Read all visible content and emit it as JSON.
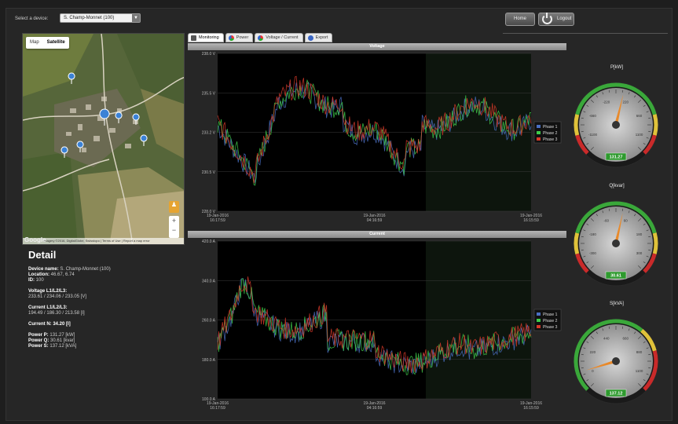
{
  "header": {
    "device_label": "Select a device:",
    "device_value": "S. Champ-Monnet (100)",
    "home_label": "Home",
    "logout_label": "Logout"
  },
  "map": {
    "type_map": "Map",
    "type_satellite": "Satellite",
    "logo": "Google",
    "footer": "Imagery ©2016, DigitalGlobe, Swisstopo | Terms of Use | Report a map error"
  },
  "tabs": [
    {
      "label": "Monitoring",
      "icon": "monitor-icon"
    },
    {
      "label": "Power",
      "icon": "power-chart-icon"
    },
    {
      "label": "Voltage / Current",
      "icon": "voltage-current-icon"
    },
    {
      "label": "Export",
      "icon": "export-icon"
    }
  ],
  "detail": {
    "title": "Detail",
    "device_name_label": "Device name:",
    "device_name": "S. Champ-Monnet (100)",
    "location_label": "Location:",
    "location": "46.67, 6.74",
    "id_label": "ID:",
    "id": "100",
    "voltage_label": "Voltage L1/L2/L3:",
    "voltage": "233.61 / 234.06 / 233.05 [V]",
    "current_label": "Current L1/L2/L3:",
    "current": "194.49 / 186.30 / 213.58 [I]",
    "current_n_label": "Current N:",
    "current_n": "34.20 [I]",
    "power_p_label": "Power P:",
    "power_p": "131.27 [kW]",
    "power_q_label": "Power Q:",
    "power_q": "30.61 [kvar]",
    "power_s_label": "Power S:",
    "power_s": "137.12 [kVA]"
  },
  "chart_data": [
    {
      "type": "line",
      "title": "Voltage",
      "y_ticks": [
        "228.0 V",
        "230.5 V",
        "233.2 V",
        "235.5 V",
        "238.0 V"
      ],
      "ylim": [
        228.0,
        238.0
      ],
      "x_ticks": [
        "19-Jan-2016\n16:17:59",
        "19-Jan-2016\n04:16:59",
        "19-Jan-2016\n16:15:59"
      ],
      "legend_position": "right",
      "series": [
        {
          "name": "Phase 1",
          "color": "#4a6fc2"
        },
        {
          "name": "Phase 2",
          "color": "#3ecb4a"
        },
        {
          "name": "Phase 3",
          "color": "#d83a2a"
        }
      ]
    },
    {
      "type": "line",
      "title": "Current",
      "y_ticks": [
        "100.0 A",
        "180.0 A",
        "260.0 A",
        "340.0 A",
        "420.0 A"
      ],
      "ylim": [
        100.0,
        420.0
      ],
      "x_ticks": [
        "19-Jan-2016\n16:17:59",
        "19-Jan-2016\n04:16:59",
        "19-Jan-2016\n16:15:59"
      ],
      "legend_position": "right",
      "series": [
        {
          "name": "Phase 1",
          "color": "#4a6fc2"
        },
        {
          "name": "Phase 2",
          "color": "#3ecb4a"
        },
        {
          "name": "Phase 3",
          "color": "#d83a2a"
        }
      ]
    }
  ],
  "gauges": [
    {
      "title": "P[kW]",
      "value": 131.27,
      "display": "131.27",
      "min": -1320,
      "max": 1320,
      "ticks": [
        "-1100",
        "-660",
        "-220",
        "220",
        "660",
        "1100"
      ]
    },
    {
      "title": "Q[kvar]",
      "value": 30.61,
      "display": "30.61",
      "min": -330,
      "max": 330,
      "ticks": [
        "-300",
        "-180",
        "-60",
        "60",
        "180",
        "300"
      ]
    },
    {
      "title": "S[kVA]",
      "value": 137.12,
      "display": "137.12",
      "min": 0,
      "max": 1320,
      "ticks": [
        "0",
        "220",
        "440",
        "660",
        "880",
        "1100"
      ]
    }
  ]
}
